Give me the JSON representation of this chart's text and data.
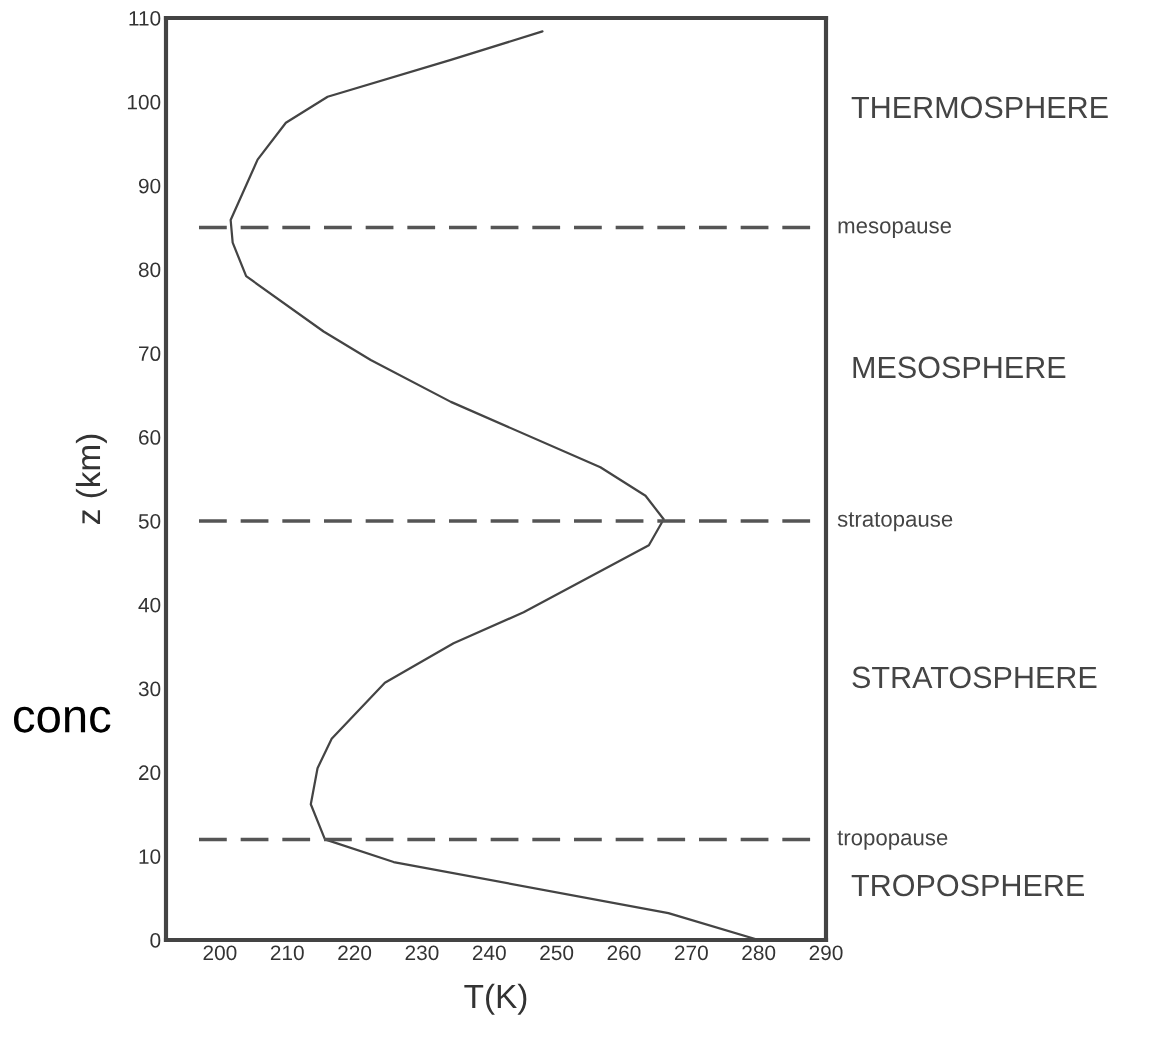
{
  "chart_data": {
    "type": "line",
    "xlabel": "T(K)",
    "ylabel": "z (km)",
    "xlim": [
      192,
      290
    ],
    "xticks": [
      200,
      210,
      220,
      230,
      240,
      250,
      260,
      270,
      280,
      290
    ],
    "ylim": [
      0,
      110
    ],
    "yticks": [
      0,
      10,
      20,
      30,
      40,
      50,
      60,
      70,
      80,
      90,
      100,
      110
    ],
    "grid": false,
    "legend": false,
    "marker": "none",
    "line_style": "solid",
    "series": [
      {
        "color": "#444444",
        "x": [
          280,
          266.6,
          225.8,
          215.6,
          213.5,
          214.5,
          216.6,
          224.5,
          234.7,
          245.1,
          263.7,
          265.9,
          263.2,
          256.5,
          234.3,
          222.4,
          215.4,
          203.9,
          201.9,
          201.6,
          205.6,
          209.8,
          216.0,
          234.3,
          247.9
        ],
        "values": [
          0,
          3.2,
          9.3,
          12.0,
          16.2,
          20.5,
          24.0,
          30.7,
          35.4,
          39.1,
          47.1,
          50.2,
          53.0,
          56.4,
          64.2,
          69.2,
          72.6,
          79.2,
          83.2,
          85.9,
          93.1,
          97.5,
          100.6,
          105.0,
          108.4
        ]
      }
    ],
    "ref_lines": [
      {
        "axis": "y",
        "value": 85,
        "label": "mesopause",
        "color": "#555555",
        "line_style": "dashed"
      },
      {
        "axis": "y",
        "value": 50,
        "label": "stratopause",
        "color": "#555555",
        "line_style": "dashed"
      },
      {
        "axis": "y",
        "value": 12,
        "label": "tropopause",
        "color": "#555555",
        "line_style": "dashed"
      }
    ],
    "annotations": [
      "THERMOSPHERE",
      "MESOSPHERE",
      "STRATOSPHERE",
      "TROPOSPHERE",
      "conc"
    ]
  }
}
